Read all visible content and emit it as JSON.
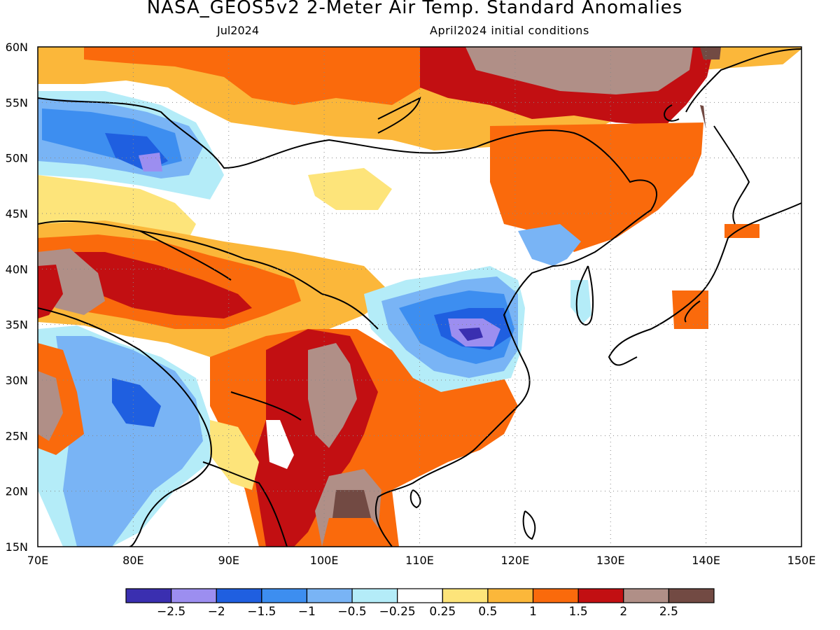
{
  "header": {
    "title": "NASA_GEOS5v2 2-Meter Air Temp. Standard Anomalies",
    "month": "Jul2024",
    "init": "April2024 initial conditions"
  },
  "map": {
    "lon_range": [
      70,
      150
    ],
    "lat_range": [
      15,
      60
    ],
    "lon_labels": [
      "70E",
      "80E",
      "90E",
      "100E",
      "110E",
      "120E",
      "130E",
      "140E",
      "150E"
    ],
    "lat_labels": [
      "15N",
      "20N",
      "25N",
      "30N",
      "35N",
      "40N",
      "45N",
      "50N",
      "55N",
      "60N"
    ],
    "grid_lines": "dotted"
  },
  "colorbar": {
    "colors": [
      "#3a2fb0",
      "#9c8ef0",
      "#1f5fe0",
      "#3d8ef0",
      "#79b4f5",
      "#b4ecf8",
      "#ffffff",
      "#fde47a",
      "#fbb73a",
      "#fa6a0c",
      "#c20f12",
      "#b08f87",
      "#724a43"
    ],
    "labels": [
      "-2.5",
      "-2",
      "-1.5",
      "-1",
      "-0.5",
      "-0.25",
      "0.25",
      "0.5",
      "1",
      "1.5",
      "2",
      "2.5"
    ]
  }
}
